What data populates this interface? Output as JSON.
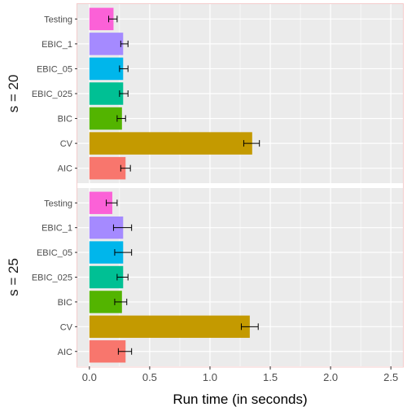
{
  "chart_data": {
    "type": "bar",
    "orientation": "horizontal",
    "xlabel": "Run time (in seconds)",
    "xlim": [
      -0.1,
      2.6
    ],
    "xticks": [
      "0.0",
      "0.5",
      "1.0",
      "1.5",
      "2.0",
      "2.5"
    ],
    "grid": true,
    "categories": [
      "AIC",
      "CV",
      "BIC",
      "EBIC_025",
      "EBIC_05",
      "EBIC_1",
      "Testing"
    ],
    "colors": {
      "AIC": "#F8766D",
      "CV": "#C49A00",
      "BIC": "#53B400",
      "EBIC_025": "#00C094",
      "EBIC_05": "#00B6EB",
      "EBIC_1": "#A58AFF",
      "Testing": "#FB61D7"
    },
    "panels": [
      {
        "label": "s = 20",
        "values": [
          0.3,
          1.35,
          0.27,
          0.28,
          0.28,
          0.28,
          0.2
        ],
        "error_low": [
          0.26,
          1.28,
          0.23,
          0.25,
          0.25,
          0.26,
          0.16
        ],
        "error_high": [
          0.34,
          1.41,
          0.3,
          0.32,
          0.32,
          0.32,
          0.23
        ]
      },
      {
        "label": "s = 25",
        "values": [
          0.3,
          1.33,
          0.27,
          0.28,
          0.28,
          0.28,
          0.19
        ],
        "error_low": [
          0.24,
          1.26,
          0.21,
          0.23,
          0.21,
          0.2,
          0.14
        ],
        "error_high": [
          0.35,
          1.4,
          0.31,
          0.32,
          0.35,
          0.35,
          0.23
        ]
      }
    ]
  }
}
